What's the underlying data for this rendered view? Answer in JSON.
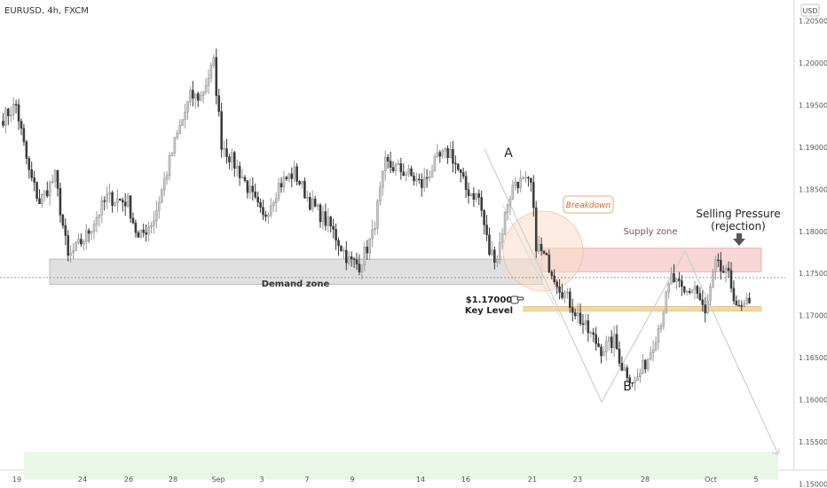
{
  "header": {
    "symbol": "EURUSD, 4h, FXCM"
  },
  "price_axis": {
    "currency_badge": "USD",
    "tick_labels": [
      "1.20500",
      "1.20000",
      "1.19500",
      "1.19000",
      "1.18500",
      "1.18000",
      "1.17500",
      "1.17000",
      "1.16500",
      "1.16000",
      "1.15500",
      "1.15000"
    ]
  },
  "time_axis": {
    "tick_labels": [
      "19",
      "24",
      "26",
      "28",
      "Sep",
      "3",
      "7",
      "9",
      "14",
      "16",
      "21",
      "23",
      "28",
      "Oct",
      "5"
    ]
  },
  "annotations": {
    "demand_zone": "Demand zone",
    "supply_zone": "Supply zone",
    "breakdown": "Breakdown",
    "key_level_price": "$1.17000",
    "key_level_text": "Key Level",
    "point_a": "A",
    "point_b": "B",
    "selling_line1": "Selling Pressure",
    "selling_line2": "(rejection)"
  },
  "colors": {
    "bull": "#c8c8c8",
    "bear": "#3a3a3a",
    "demand_fill": "#e0e0e0",
    "supply_fill": "#f7d6d6",
    "key_level": "#f3d9a8",
    "breakdown_circle": "#f9dcc8",
    "breakdown_text": "#d9622b",
    "supply_text": "#8a4a4a",
    "green_zone": "#eaf6e8"
  },
  "chart_data": {
    "type": "candlestick",
    "timeframe": "4h",
    "ylim": [
      1.1495,
      1.2075
    ],
    "x_ticks": [
      "19",
      "24",
      "26",
      "28",
      "Sep",
      "3",
      "7",
      "9",
      "14",
      "16",
      "21",
      "23",
      "28",
      "Oct",
      "5"
    ],
    "zones": {
      "demand": [
        1.1737,
        1.1767
      ],
      "supply": [
        1.1752,
        1.178
      ],
      "key_level": 1.1708,
      "lower_zone": [
        1.1505,
        1.1538
      ]
    },
    "anchors": [
      {
        "i": 0,
        "p": 1.1935
      },
      {
        "i": 5,
        "p": 1.195
      },
      {
        "i": 10,
        "p": 1.187
      },
      {
        "i": 14,
        "p": 1.1835
      },
      {
        "i": 20,
        "p": 1.1865
      },
      {
        "i": 25,
        "p": 1.1768
      },
      {
        "i": 32,
        "p": 1.1795
      },
      {
        "i": 40,
        "p": 1.184
      },
      {
        "i": 48,
        "p": 1.1835
      },
      {
        "i": 52,
        "p": 1.179
      },
      {
        "i": 58,
        "p": 1.1815
      },
      {
        "i": 66,
        "p": 1.1905
      },
      {
        "i": 72,
        "p": 1.196
      },
      {
        "i": 76,
        "p": 1.196
      },
      {
        "i": 81,
        "p": 1.2
      },
      {
        "i": 84,
        "p": 1.1905
      },
      {
        "i": 92,
        "p": 1.1865
      },
      {
        "i": 100,
        "p": 1.1815
      },
      {
        "i": 106,
        "p": 1.1855
      },
      {
        "i": 112,
        "p": 1.187
      },
      {
        "i": 118,
        "p": 1.1835
      },
      {
        "i": 126,
        "p": 1.1805
      },
      {
        "i": 133,
        "p": 1.1765
      },
      {
        "i": 137,
        "p": 1.176
      },
      {
        "i": 142,
        "p": 1.1795
      },
      {
        "i": 147,
        "p": 1.188
      },
      {
        "i": 155,
        "p": 1.187
      },
      {
        "i": 161,
        "p": 1.1855
      },
      {
        "i": 167,
        "p": 1.1885
      },
      {
        "i": 172,
        "p": 1.1895
      },
      {
        "i": 178,
        "p": 1.185
      },
      {
        "i": 183,
        "p": 1.184
      },
      {
        "i": 187,
        "p": 1.1775
      },
      {
        "i": 190,
        "p": 1.177
      },
      {
        "i": 194,
        "p": 1.1835
      },
      {
        "i": 197,
        "p": 1.186
      },
      {
        "i": 203,
        "p": 1.1855
      },
      {
        "i": 205,
        "p": 1.1785
      },
      {
        "i": 210,
        "p": 1.176
      },
      {
        "i": 214,
        "p": 1.1735
      },
      {
        "i": 218,
        "p": 1.1715
      },
      {
        "i": 224,
        "p": 1.1685
      },
      {
        "i": 230,
        "p": 1.166
      },
      {
        "i": 235,
        "p": 1.167
      },
      {
        "i": 238,
        "p": 1.164
      },
      {
        "i": 243,
        "p": 1.162
      },
      {
        "i": 248,
        "p": 1.165
      },
      {
        "i": 253,
        "p": 1.1695
      },
      {
        "i": 257,
        "p": 1.1745
      },
      {
        "i": 262,
        "p": 1.1725
      },
      {
        "i": 266,
        "p": 1.1735
      },
      {
        "i": 270,
        "p": 1.17
      },
      {
        "i": 274,
        "p": 1.176
      },
      {
        "i": 279,
        "p": 1.1745
      },
      {
        "i": 283,
        "p": 1.1705
      },
      {
        "i": 287,
        "p": 1.1715
      }
    ]
  }
}
